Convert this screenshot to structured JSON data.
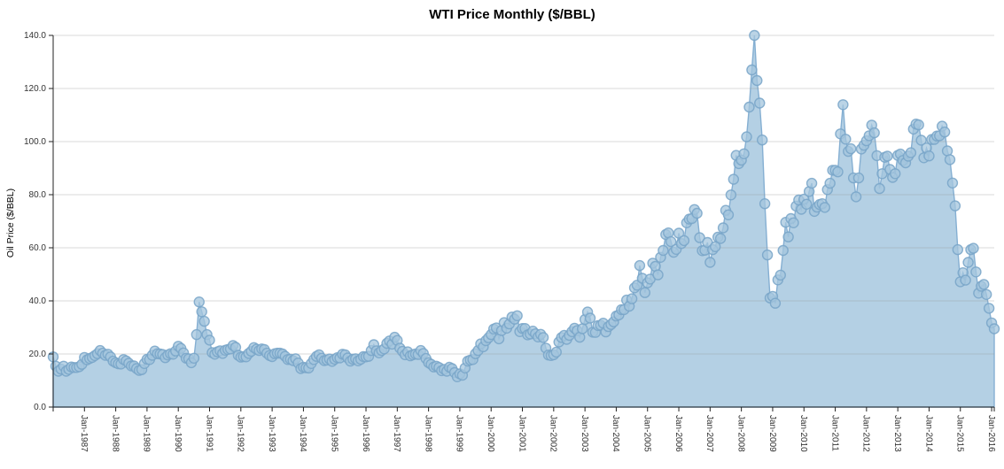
{
  "chart_data": {
    "type": "area",
    "title": "WTI Price Monthly ($/BBL)",
    "xlabel": "",
    "ylabel": "Oil Price ($/BBL)",
    "grid": true,
    "legend": "none",
    "ylim": [
      0,
      140
    ],
    "y_ticks": [
      0,
      20,
      40,
      60,
      80,
      100,
      120,
      140
    ],
    "y_tick_labels": [
      "0.0",
      "20.0",
      "40.0",
      "60.0",
      "80.0",
      "100.0",
      "120.0",
      "140.0"
    ],
    "x_tick_labels": [
      "Jan-1987",
      "Jan-1988",
      "Jan-1989",
      "Jan-1990",
      "Jan-1991",
      "Jan-1992",
      "Jan-1993",
      "Jan-1994",
      "Jan-1995",
      "Jan-1996",
      "Jan-1997",
      "Jan-1998",
      "Jan-1999",
      "Jan-2000",
      "Jan-2001",
      "Jan-2002",
      "Jan-2003",
      "Jan-2004",
      "Jan-2005",
      "Jan-2006",
      "Jan-2007",
      "Jan-2008",
      "Jan-2009",
      "Jan-2010",
      "Jan-2011",
      "Jan-2012",
      "Jan-2013",
      "Jan-2014",
      "Jan-2015",
      "Jan-2016"
    ],
    "series": [
      {
        "name": "WTI monthly price ($/BBL)",
        "x_start_month": "Jan-1986",
        "x_end_month": "Feb-2016",
        "cadence": "monthly",
        "values": [
          18.9,
          15.4,
          13.5,
          14.3,
          15.4,
          13.5,
          14.2,
          15.1,
          14.9,
          14.9,
          15.2,
          16.1,
          18.7,
          17.8,
          18.3,
          18.7,
          19.4,
          20.1,
          21.3,
          20.3,
          19.5,
          19.9,
          18.9,
          17.3,
          16.7,
          16.3,
          16.2,
          17.9,
          17.4,
          16.5,
          15.5,
          15.5,
          14.5,
          13.8,
          14.1,
          16.4,
          18.0,
          17.9,
          19.5,
          21.1,
          20.1,
          20.0,
          19.8,
          18.6,
          19.6,
          20.1,
          19.9,
          21.1,
          22.9,
          22.1,
          20.4,
          18.4,
          18.2,
          16.7,
          18.4,
          27.3,
          39.6,
          35.9,
          32.3,
          27.3,
          25.2,
          20.5,
          19.9,
          20.8,
          21.2,
          20.2,
          21.4,
          21.7,
          21.9,
          23.2,
          22.5,
          19.5,
          18.8,
          19.0,
          18.9,
          20.2,
          21.0,
          22.4,
          21.8,
          21.3,
          21.9,
          21.7,
          20.3,
          19.4,
          19.0,
          20.1,
          20.3,
          20.3,
          20.0,
          19.1,
          17.9,
          18.0,
          17.5,
          18.2,
          16.6,
          14.5,
          15.0,
          14.8,
          14.7,
          16.4,
          17.9,
          19.1,
          19.7,
          18.4,
          17.5,
          17.7,
          18.1,
          17.2,
          18.0,
          18.6,
          18.5,
          19.9,
          19.7,
          18.5,
          17.3,
          18.0,
          18.2,
          17.4,
          18.0,
          19.0,
          18.9,
          19.1,
          21.3,
          23.5,
          21.2,
          20.4,
          21.3,
          21.9,
          24.0,
          24.9,
          23.7,
          26.3,
          25.1,
          22.2,
          21.0,
          19.7,
          20.8,
          19.3,
          19.7,
          20.0,
          19.8,
          21.3,
          20.2,
          18.3,
          16.7,
          16.1,
          15.1,
          15.4,
          14.9,
          13.7,
          14.2,
          13.5,
          15.0,
          14.5,
          13.0,
          11.4,
          12.5,
          12.0,
          14.7,
          17.3,
          17.7,
          17.9,
          20.1,
          21.3,
          23.8,
          22.7,
          25.0,
          26.1,
          27.3,
          29.4,
          29.8,
          25.7,
          28.8,
          31.8,
          29.7,
          31.3,
          33.9,
          33.1,
          34.4,
          28.4,
          29.6,
          29.6,
          27.2,
          27.5,
          28.6,
          27.6,
          26.4,
          27.4,
          26.2,
          22.2,
          19.6,
          19.4,
          19.7,
          20.7,
          24.5,
          26.2,
          27.0,
          25.5,
          27.0,
          28.4,
          29.7,
          28.8,
          26.3,
          29.5,
          33.0,
          35.8,
          33.5,
          28.2,
          28.1,
          30.7,
          30.8,
          31.6,
          28.3,
          30.3,
          31.1,
          32.1,
          34.3,
          34.7,
          36.7,
          36.7,
          40.3,
          38.0,
          40.8,
          44.9,
          45.9,
          53.3,
          48.5,
          43.1,
          46.8,
          48.2,
          54.2,
          53.0,
          49.8,
          56.4,
          59.0,
          65.0,
          65.6,
          62.3,
          58.3,
          59.4,
          65.5,
          61.6,
          62.7,
          69.4,
          70.8,
          71.0,
          74.4,
          73.0,
          63.8,
          58.9,
          59.1,
          62.0,
          54.5,
          59.3,
          60.4,
          64.0,
          63.5,
          67.5,
          74.1,
          72.4,
          79.9,
          85.8,
          94.8,
          91.7,
          93.0,
          95.4,
          101.8,
          113.0,
          127.0,
          140.0,
          123.0,
          114.5,
          100.6,
          76.6,
          57.3,
          41.1,
          41.7,
          39.1,
          47.9,
          49.7,
          59.0,
          69.6,
          64.1,
          71.0,
          69.4,
          75.7,
          78.0,
          74.5,
          78.3,
          76.4,
          81.2,
          84.3,
          73.7,
          75.3,
          76.3,
          76.6,
          75.2,
          81.9,
          84.3,
          89.2,
          89.2,
          88.6,
          102.9,
          113.9,
          100.9,
          96.3,
          97.3,
          86.3,
          79.2,
          86.3,
          97.2,
          98.6,
          100.3,
          102.2,
          106.2,
          103.3,
          94.7,
          82.3,
          87.9,
          94.1,
          94.5,
          89.5,
          86.5,
          87.9,
          94.8,
          95.3,
          92.9,
          92.0,
          94.5,
          95.8,
          104.7,
          106.6,
          106.3,
          100.5,
          93.9,
          97.6,
          94.6,
          100.8,
          100.8,
          102.1,
          102.2,
          105.8,
          103.6,
          96.5,
          93.2,
          84.4,
          75.8,
          59.3,
          47.2,
          50.6,
          47.8,
          54.5,
          59.3,
          59.8,
          50.9,
          42.9,
          45.5,
          46.2,
          42.4,
          37.2,
          31.7,
          29.5
        ]
      }
    ],
    "colors": {
      "area_fill": "#b0cee3",
      "area_stroke": "#85afd2",
      "marker_fill": "#a4c5dd",
      "marker_stroke": "#78a5c8",
      "gridline": "#dcdcdc",
      "axis": "#222222",
      "tick_label": "#333333",
      "title": "#000000",
      "axis_title": "#444444"
    }
  }
}
